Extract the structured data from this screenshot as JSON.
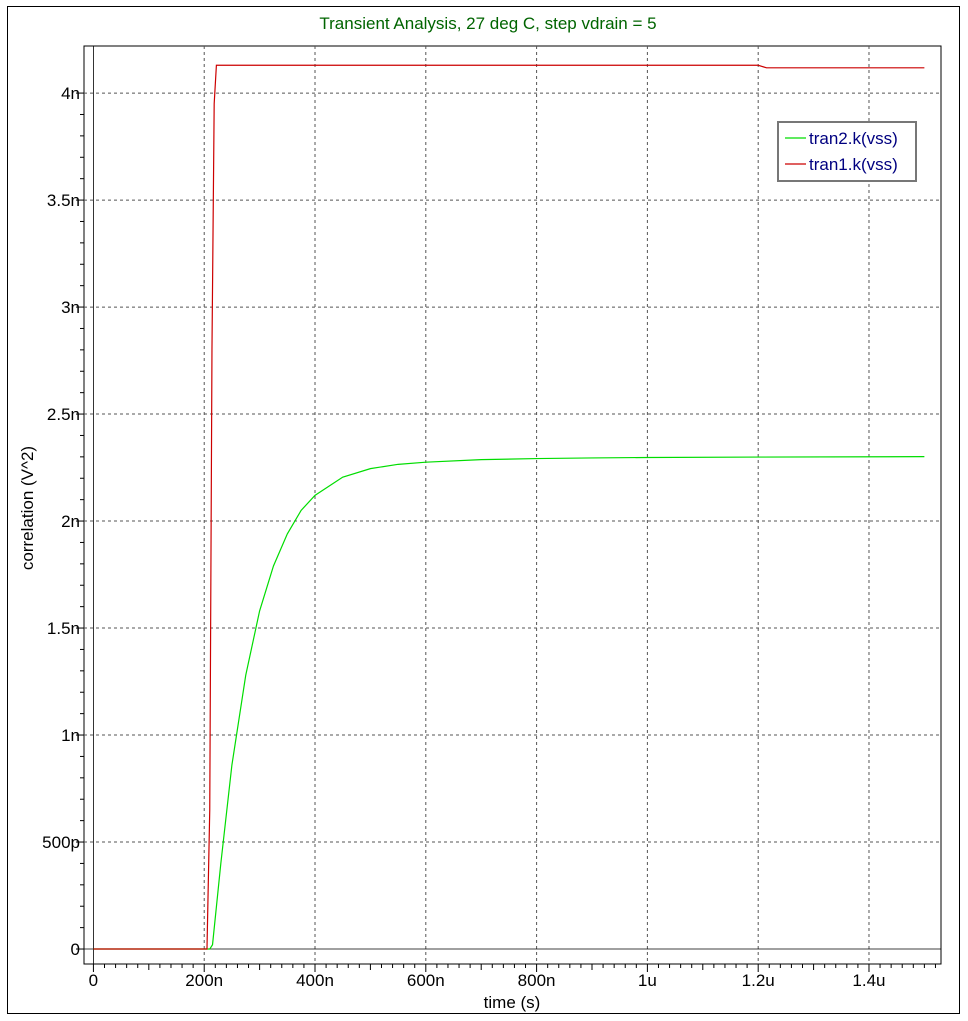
{
  "title": "Transient Analysis, 27 deg C, step vdrain = 5",
  "colors": {
    "title": "#006400",
    "legend_text": "#000080",
    "grid": "#555555",
    "tran2": "#00dd00",
    "tran1": "#cc0000"
  },
  "chart_data": {
    "type": "line",
    "title": "Transient Analysis, 27 deg C, step vdrain = 5",
    "xlabel": "time (s)",
    "ylabel": "correlation (V^2)",
    "xlim": [
      -1.7e-08,
      1.53e-06
    ],
    "ylim": [
      -7e-11,
      4.22e-09
    ],
    "x_ticks": [
      {
        "value": 0,
        "label": "0"
      },
      {
        "value": 2e-07,
        "label": "200n"
      },
      {
        "value": 4e-07,
        "label": "400n"
      },
      {
        "value": 6e-07,
        "label": "600n"
      },
      {
        "value": 8e-07,
        "label": "800n"
      },
      {
        "value": 1e-06,
        "label": "1u"
      },
      {
        "value": 1.2e-06,
        "label": "1.2u"
      },
      {
        "value": 1.4e-06,
        "label": "1.4u"
      }
    ],
    "y_ticks": [
      {
        "value": 0,
        "label": "0"
      },
      {
        "value": 5e-10,
        "label": "500p"
      },
      {
        "value": 1e-09,
        "label": "1n"
      },
      {
        "value": 1.5e-09,
        "label": "1.5n"
      },
      {
        "value": 2e-09,
        "label": "2n"
      },
      {
        "value": 2.5e-09,
        "label": "2.5n"
      },
      {
        "value": 3e-09,
        "label": "3n"
      },
      {
        "value": 3.5e-09,
        "label": "3.5n"
      },
      {
        "value": 4e-09,
        "label": "4n"
      }
    ],
    "grid": true,
    "legend_position": "top-right",
    "series": [
      {
        "name": "tran2.k(vss)",
        "color": "#00dd00",
        "x": [
          0,
          2.1e-07,
          2.15e-07,
          2.3e-07,
          2.5e-07,
          2.75e-07,
          3e-07,
          3.25e-07,
          3.5e-07,
          3.75e-07,
          4e-07,
          4.5e-07,
          5e-07,
          5.5e-07,
          6e-07,
          7e-07,
          8e-07,
          9e-07,
          1e-06,
          1.2e-06,
          1.5e-06
        ],
        "y": [
          0,
          0,
          2e-11,
          4e-10,
          8.6e-10,
          1.28e-09,
          1.58e-09,
          1.79e-09,
          1.94e-09,
          2.05e-09,
          2.12e-09,
          2.205e-09,
          2.245e-09,
          2.265e-09,
          2.275e-09,
          2.287e-09,
          2.292e-09,
          2.295e-09,
          2.297e-09,
          2.299e-09,
          2.301e-09
        ]
      },
      {
        "name": "tran1.k(vss)",
        "color": "#cc0000",
        "x": [
          0,
          2.05e-07,
          2.1e-07,
          2.14e-07,
          2.18e-07,
          2.22e-07,
          1.2e-06,
          1.215e-06,
          1.5e-06
        ],
        "y": [
          0,
          0,
          6.5e-10,
          2.8e-09,
          3.95e-09,
          4.13e-09,
          4.13e-09,
          4.118e-09,
          4.118e-09
        ]
      }
    ]
  }
}
